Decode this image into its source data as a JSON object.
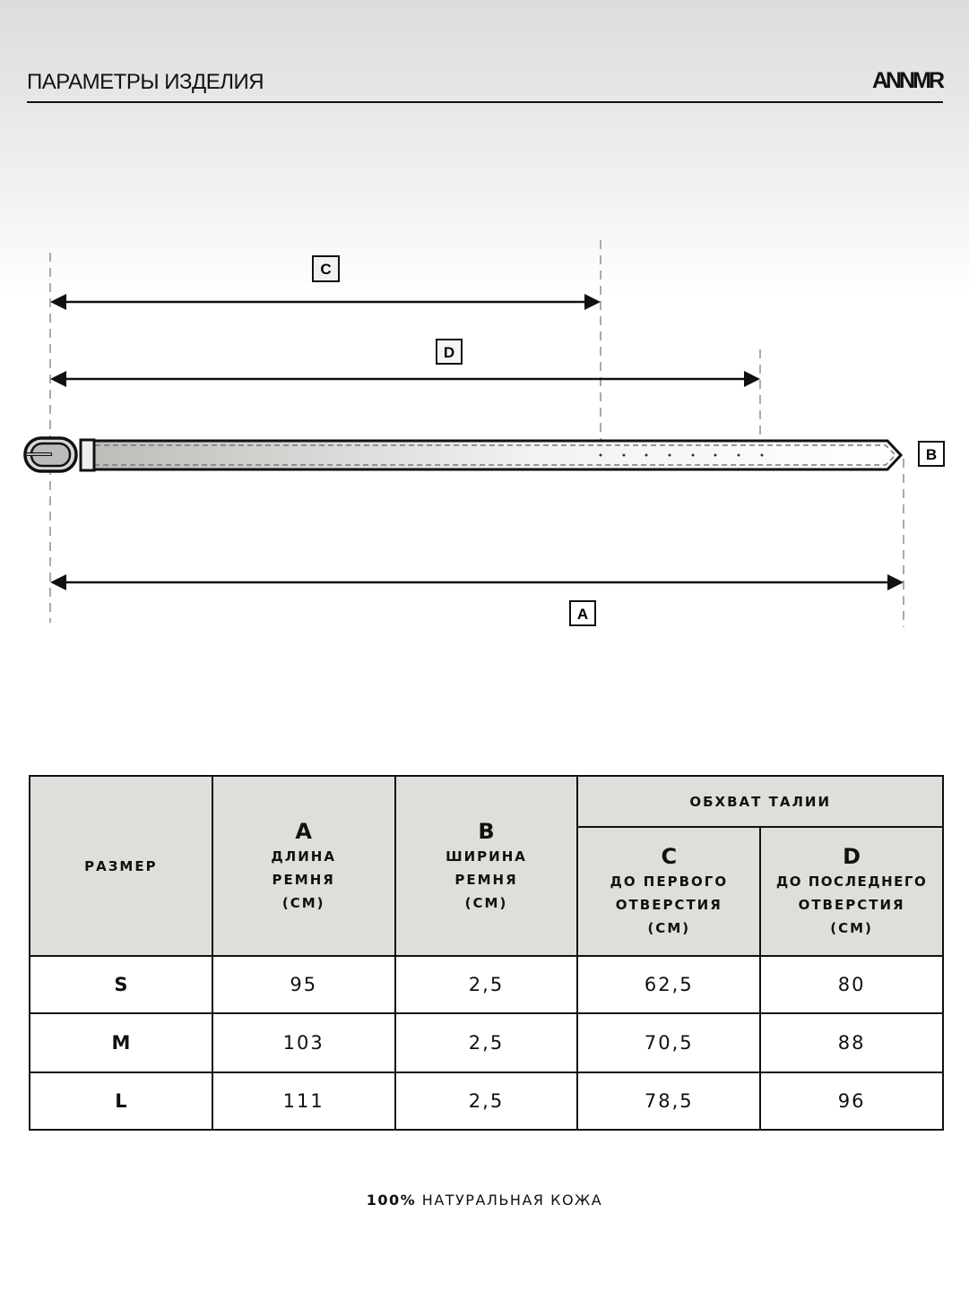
{
  "header": {
    "title": "ПАРАМЕТРЫ ИЗДЕЛИЯ",
    "logo": "ANNMR"
  },
  "diagram": {
    "labels": {
      "a": "A",
      "b": "B",
      "c": "C",
      "d": "D"
    }
  },
  "table": {
    "size_header": "РАЗМЕР",
    "a_letter": "A",
    "a_line1": "ДЛИНА",
    "a_line2": "РЕМНЯ",
    "a_unit": "(СМ)",
    "b_letter": "B",
    "b_line1": "ШИРИНА",
    "b_line2": "РЕМНЯ",
    "b_unit": "(СМ)",
    "group_header": "ОБХВАТ ТАЛИИ",
    "c_letter": "C",
    "c_line1": "ДО ПЕРВОГО",
    "c_line2": "ОТВЕРСТИЯ",
    "c_unit": "(СМ)",
    "d_letter": "D",
    "d_line1": "ДО ПОСЛЕДНЕГО",
    "d_line2": "ОТВЕРСТИЯ",
    "d_unit": "(СМ)",
    "rows": [
      {
        "size": "S",
        "a": "95",
        "b": "2,5",
        "c": "62,5",
        "d": "80"
      },
      {
        "size": "M",
        "a": "103",
        "b": "2,5",
        "c": "70,5",
        "d": "88"
      },
      {
        "size": "L",
        "a": "111",
        "b": "2,5",
        "c": "78,5",
        "d": "96"
      }
    ]
  },
  "footer": {
    "bold": "100%",
    "text": " НАТУРАЛЬНАЯ КОЖА"
  }
}
